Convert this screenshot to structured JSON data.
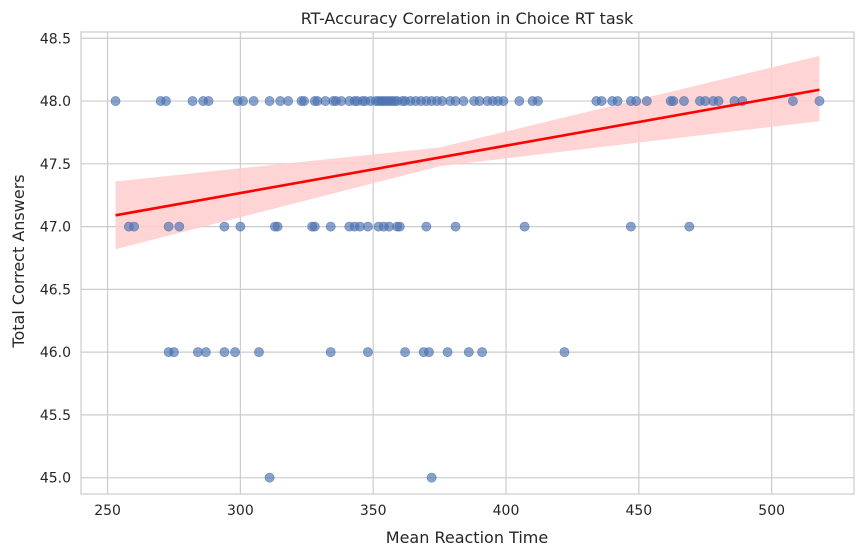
{
  "chart_data": {
    "type": "scatter",
    "title": "RT-Accuracy Correlation in Choice RT task",
    "xlabel": "Mean Reaction Time",
    "ylabel": "Total Correct Answers",
    "xlim": [
      240,
      531
    ],
    "ylim": [
      44.87,
      48.55
    ],
    "xticks": [
      250,
      300,
      350,
      400,
      450,
      500
    ],
    "xtick_labels": [
      "250",
      "300",
      "350",
      "400",
      "450",
      "500"
    ],
    "yticks": [
      45.0,
      45.5,
      46.0,
      46.5,
      47.0,
      47.5,
      48.0,
      48.5
    ],
    "ytick_labels": [
      "45.0",
      "45.5",
      "46.0",
      "46.5",
      "47.0",
      "47.5",
      "48.0",
      "48.5"
    ],
    "grid": true,
    "colors": {
      "points": "#4c72b0",
      "regression": "#ff0000",
      "band": "#ffcccc",
      "grid": "#cccccc",
      "spine": "#cccccc"
    },
    "regression": {
      "x": [
        253,
        518
      ],
      "y": [
        47.09,
        48.09
      ],
      "ci_lower": [
        46.82,
        47.84
      ],
      "ci_upper": [
        47.36,
        48.36
      ],
      "ci_mid_x": 375,
      "ci_mid_lower": [
        47.48
      ],
      "ci_mid_upper": [
        47.63
      ]
    },
    "points": [
      {
        "x": 253,
        "y": 48
      },
      {
        "x": 270,
        "y": 48
      },
      {
        "x": 272,
        "y": 48
      },
      {
        "x": 282,
        "y": 48
      },
      {
        "x": 286,
        "y": 48
      },
      {
        "x": 288,
        "y": 48
      },
      {
        "x": 299,
        "y": 48
      },
      {
        "x": 301,
        "y": 48
      },
      {
        "x": 305,
        "y": 48
      },
      {
        "x": 311,
        "y": 48
      },
      {
        "x": 315,
        "y": 48
      },
      {
        "x": 318,
        "y": 48
      },
      {
        "x": 323,
        "y": 48
      },
      {
        "x": 324,
        "y": 48
      },
      {
        "x": 328,
        "y": 48
      },
      {
        "x": 329,
        "y": 48
      },
      {
        "x": 332,
        "y": 48
      },
      {
        "x": 335,
        "y": 48
      },
      {
        "x": 336,
        "y": 48
      },
      {
        "x": 338,
        "y": 48
      },
      {
        "x": 341,
        "y": 48
      },
      {
        "x": 343,
        "y": 48
      },
      {
        "x": 344,
        "y": 48
      },
      {
        "x": 346,
        "y": 48
      },
      {
        "x": 347,
        "y": 48
      },
      {
        "x": 349,
        "y": 48
      },
      {
        "x": 351,
        "y": 48
      },
      {
        "x": 352,
        "y": 48
      },
      {
        "x": 353,
        "y": 48
      },
      {
        "x": 354,
        "y": 48
      },
      {
        "x": 355,
        "y": 48
      },
      {
        "x": 356,
        "y": 48
      },
      {
        "x": 357,
        "y": 48
      },
      {
        "x": 358,
        "y": 48
      },
      {
        "x": 359,
        "y": 48
      },
      {
        "x": 361,
        "y": 48
      },
      {
        "x": 362,
        "y": 48
      },
      {
        "x": 364,
        "y": 48
      },
      {
        "x": 366,
        "y": 48
      },
      {
        "x": 368,
        "y": 48
      },
      {
        "x": 370,
        "y": 48
      },
      {
        "x": 372,
        "y": 48
      },
      {
        "x": 374,
        "y": 48
      },
      {
        "x": 376,
        "y": 48
      },
      {
        "x": 379,
        "y": 48
      },
      {
        "x": 381,
        "y": 48
      },
      {
        "x": 384,
        "y": 48
      },
      {
        "x": 388,
        "y": 48
      },
      {
        "x": 390,
        "y": 48
      },
      {
        "x": 393,
        "y": 48
      },
      {
        "x": 395,
        "y": 48
      },
      {
        "x": 397,
        "y": 48
      },
      {
        "x": 399,
        "y": 48
      },
      {
        "x": 405,
        "y": 48
      },
      {
        "x": 410,
        "y": 48
      },
      {
        "x": 412,
        "y": 48
      },
      {
        "x": 434,
        "y": 48
      },
      {
        "x": 436,
        "y": 48
      },
      {
        "x": 440,
        "y": 48
      },
      {
        "x": 442,
        "y": 48
      },
      {
        "x": 447,
        "y": 48
      },
      {
        "x": 449,
        "y": 48
      },
      {
        "x": 453,
        "y": 48
      },
      {
        "x": 462,
        "y": 48
      },
      {
        "x": 463,
        "y": 48
      },
      {
        "x": 467,
        "y": 48
      },
      {
        "x": 473,
        "y": 48
      },
      {
        "x": 475,
        "y": 48
      },
      {
        "x": 478,
        "y": 48
      },
      {
        "x": 480,
        "y": 48
      },
      {
        "x": 486,
        "y": 48
      },
      {
        "x": 489,
        "y": 48
      },
      {
        "x": 508,
        "y": 48
      },
      {
        "x": 518,
        "y": 48
      },
      {
        "x": 258,
        "y": 47
      },
      {
        "x": 260,
        "y": 47
      },
      {
        "x": 273,
        "y": 47
      },
      {
        "x": 277,
        "y": 47
      },
      {
        "x": 294,
        "y": 47
      },
      {
        "x": 300,
        "y": 47
      },
      {
        "x": 313,
        "y": 47
      },
      {
        "x": 314,
        "y": 47
      },
      {
        "x": 327,
        "y": 47
      },
      {
        "x": 328,
        "y": 47
      },
      {
        "x": 334,
        "y": 47
      },
      {
        "x": 341,
        "y": 47
      },
      {
        "x": 343,
        "y": 47
      },
      {
        "x": 345,
        "y": 47
      },
      {
        "x": 348,
        "y": 47
      },
      {
        "x": 352,
        "y": 47
      },
      {
        "x": 354,
        "y": 47
      },
      {
        "x": 356,
        "y": 47
      },
      {
        "x": 359,
        "y": 47
      },
      {
        "x": 360,
        "y": 47
      },
      {
        "x": 370,
        "y": 47
      },
      {
        "x": 381,
        "y": 47
      },
      {
        "x": 407,
        "y": 47
      },
      {
        "x": 447,
        "y": 47
      },
      {
        "x": 469,
        "y": 47
      },
      {
        "x": 273,
        "y": 46
      },
      {
        "x": 275,
        "y": 46
      },
      {
        "x": 284,
        "y": 46
      },
      {
        "x": 287,
        "y": 46
      },
      {
        "x": 294,
        "y": 46
      },
      {
        "x": 298,
        "y": 46
      },
      {
        "x": 307,
        "y": 46
      },
      {
        "x": 334,
        "y": 46
      },
      {
        "x": 348,
        "y": 46
      },
      {
        "x": 362,
        "y": 46
      },
      {
        "x": 369,
        "y": 46
      },
      {
        "x": 371,
        "y": 46
      },
      {
        "x": 378,
        "y": 46
      },
      {
        "x": 386,
        "y": 46
      },
      {
        "x": 391,
        "y": 46
      },
      {
        "x": 422,
        "y": 46
      },
      {
        "x": 311,
        "y": 45
      },
      {
        "x": 372,
        "y": 45
      }
    ]
  }
}
